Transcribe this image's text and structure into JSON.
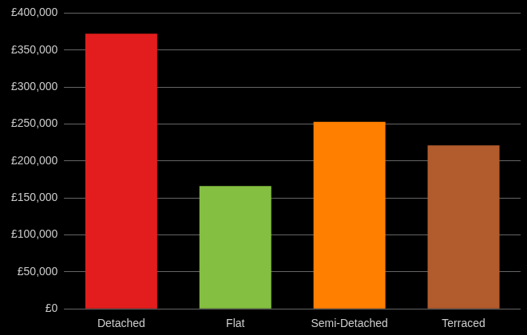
{
  "chart_data": {
    "type": "bar",
    "categories": [
      "Detached",
      "Flat",
      "Semi-Detached",
      "Terraced"
    ],
    "values": [
      372000,
      166000,
      253000,
      221000
    ],
    "colors": [
      "#e31d1d",
      "#84bf41",
      "#ff8000",
      "#b25b2c"
    ],
    "ylim": [
      0,
      400000
    ],
    "yticks": [
      {
        "value": 0,
        "label": "£0"
      },
      {
        "value": 50000,
        "label": "£50,000"
      },
      {
        "value": 100000,
        "label": "£100,000"
      },
      {
        "value": 150000,
        "label": "£150,000"
      },
      {
        "value": 200000,
        "label": "£200,000"
      },
      {
        "value": 250000,
        "label": "£250,000"
      },
      {
        "value": 300000,
        "label": "£300,000"
      },
      {
        "value": 350000,
        "label": "£350,000"
      },
      {
        "value": 400000,
        "label": "£400,000"
      }
    ],
    "grid": true
  }
}
